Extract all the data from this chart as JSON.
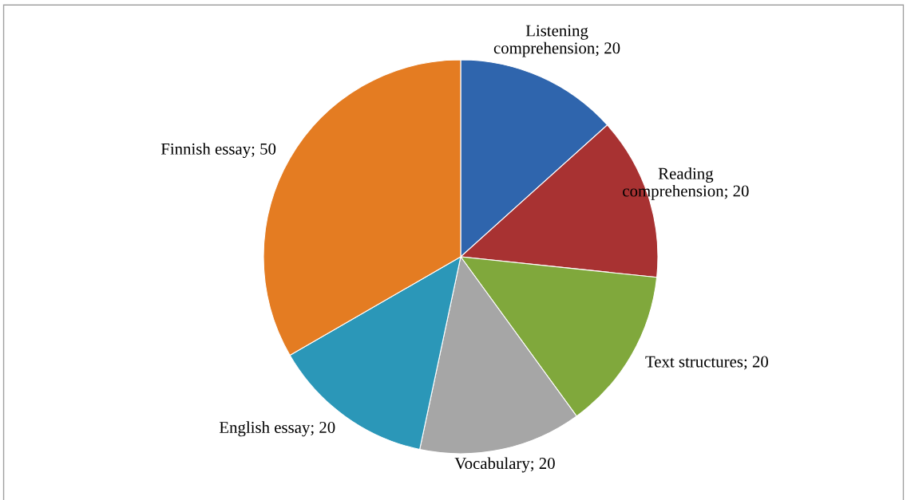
{
  "chart_data": {
    "type": "pie",
    "categories": [
      "Listening comprehension; 20",
      "Reading comprehension; 20",
      "Text structures; 20",
      "Vocabulary; 20",
      "English essay; 20",
      "Finnish essay; 50"
    ],
    "values": [
      20,
      20,
      20,
      20,
      20,
      50
    ],
    "colors": [
      "#2f65ad",
      "#a83232",
      "#80a83c",
      "#a6a6a6",
      "#2b97b8",
      "#e47c22"
    ],
    "legend": false
  }
}
